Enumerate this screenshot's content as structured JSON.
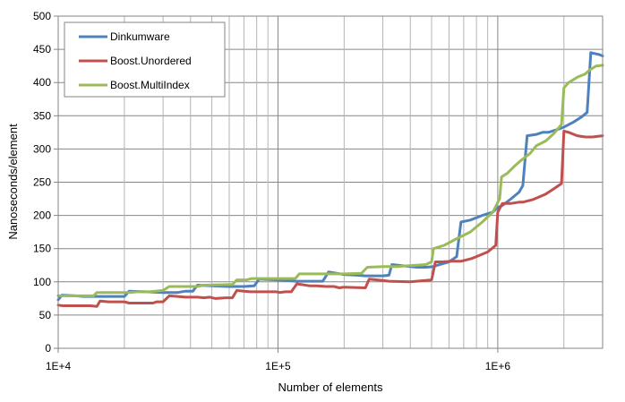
{
  "chart_data": {
    "type": "line",
    "xlabel": "Number of elements",
    "ylabel": "Nanoseconds/element",
    "xscale": "log",
    "xlim": [
      10000,
      3000000
    ],
    "ylim": [
      0,
      500
    ],
    "x_tick_labels": [
      "1E+4",
      "1E+5",
      "1E+6"
    ],
    "x_tick_values": [
      10000,
      100000,
      1000000
    ],
    "y_ticks": [
      0,
      50,
      100,
      150,
      200,
      250,
      300,
      350,
      400,
      450,
      500
    ],
    "grid": "both",
    "legend_position": "top-left",
    "series": [
      {
        "name": "Dinkumware",
        "color": "#4F81BD",
        "points": [
          [
            10000,
            73
          ],
          [
            10400,
            80
          ],
          [
            12000,
            79
          ],
          [
            13000,
            78
          ],
          [
            16000,
            78
          ],
          [
            17000,
            78
          ],
          [
            20000,
            78
          ],
          [
            21000,
            86
          ],
          [
            25000,
            85
          ],
          [
            30000,
            84
          ],
          [
            35000,
            84
          ],
          [
            38000,
            86
          ],
          [
            41000,
            86
          ],
          [
            43000,
            95
          ],
          [
            50000,
            94
          ],
          [
            60000,
            93
          ],
          [
            70000,
            93
          ],
          [
            78000,
            94
          ],
          [
            82000,
            104
          ],
          [
            100000,
            103
          ],
          [
            110000,
            102
          ],
          [
            120000,
            101
          ],
          [
            150000,
            101
          ],
          [
            160000,
            101
          ],
          [
            170000,
            115
          ],
          [
            200000,
            111
          ],
          [
            230000,
            110
          ],
          [
            250000,
            109
          ],
          [
            300000,
            109
          ],
          [
            320000,
            110
          ],
          [
            330000,
            126
          ],
          [
            400000,
            123
          ],
          [
            430000,
            122
          ],
          [
            470000,
            122
          ],
          [
            510000,
            123
          ],
          [
            530000,
            125
          ],
          [
            600000,
            130
          ],
          [
            650000,
            138
          ],
          [
            680000,
            190
          ],
          [
            750000,
            193
          ],
          [
            850000,
            200
          ],
          [
            950000,
            205
          ],
          [
            1000000,
            212
          ],
          [
            1050000,
            215
          ],
          [
            1150000,
            225
          ],
          [
            1250000,
            235
          ],
          [
            1300000,
            245
          ],
          [
            1360000,
            320
          ],
          [
            1500000,
            322
          ],
          [
            1600000,
            325
          ],
          [
            1700000,
            325
          ],
          [
            1900000,
            330
          ],
          [
            2000000,
            333
          ],
          [
            2200000,
            340
          ],
          [
            2400000,
            348
          ],
          [
            2550000,
            355
          ],
          [
            2650000,
            445
          ],
          [
            2900000,
            442
          ],
          [
            3000000,
            440
          ]
        ]
      },
      {
        "name": "Boost.Unordered",
        "color": "#C0504D",
        "points": [
          [
            10000,
            65
          ],
          [
            10500,
            64
          ],
          [
            12000,
            64
          ],
          [
            14000,
            64
          ],
          [
            15000,
            63
          ],
          [
            15500,
            71
          ],
          [
            17000,
            70
          ],
          [
            20000,
            70
          ],
          [
            21000,
            68
          ],
          [
            25000,
            68
          ],
          [
            27000,
            68
          ],
          [
            28000,
            70
          ],
          [
            30000,
            70
          ],
          [
            32000,
            79
          ],
          [
            35000,
            78
          ],
          [
            38000,
            77
          ],
          [
            43000,
            77
          ],
          [
            46000,
            76
          ],
          [
            49000,
            77
          ],
          [
            52000,
            75
          ],
          [
            58000,
            76
          ],
          [
            62000,
            76
          ],
          [
            65000,
            87
          ],
          [
            70000,
            86
          ],
          [
            75000,
            85
          ],
          [
            90000,
            85
          ],
          [
            98000,
            85
          ],
          [
            102000,
            84
          ],
          [
            108000,
            85
          ],
          [
            115000,
            85
          ],
          [
            122000,
            97
          ],
          [
            140000,
            94
          ],
          [
            150000,
            94
          ],
          [
            165000,
            93
          ],
          [
            180000,
            93
          ],
          [
            190000,
            91
          ],
          [
            200000,
            92
          ],
          [
            250000,
            91
          ],
          [
            260000,
            104
          ],
          [
            300000,
            102
          ],
          [
            320000,
            101
          ],
          [
            400000,
            100
          ],
          [
            500000,
            103
          ],
          [
            520000,
            130
          ],
          [
            560000,
            130
          ],
          [
            620000,
            131
          ],
          [
            680000,
            131
          ],
          [
            760000,
            135
          ],
          [
            800000,
            138
          ],
          [
            900000,
            145
          ],
          [
            980000,
            155
          ],
          [
            1000000,
            205
          ],
          [
            1050000,
            218
          ],
          [
            1150000,
            218
          ],
          [
            1250000,
            220
          ],
          [
            1300000,
            220
          ],
          [
            1450000,
            224
          ],
          [
            1550000,
            228
          ],
          [
            1650000,
            232
          ],
          [
            1800000,
            240
          ],
          [
            1950000,
            248
          ],
          [
            2000000,
            327
          ],
          [
            2100000,
            325
          ],
          [
            2300000,
            320
          ],
          [
            2500000,
            318
          ],
          [
            2700000,
            318
          ],
          [
            3000000,
            320
          ]
        ]
      },
      {
        "name": "Boost.MultiIndex",
        "color": "#9BBB59",
        "points": [
          [
            10000,
            79
          ],
          [
            12000,
            79
          ],
          [
            14500,
            79
          ],
          [
            15000,
            84
          ],
          [
            20000,
            84
          ],
          [
            21000,
            84
          ],
          [
            23000,
            85
          ],
          [
            26000,
            85
          ],
          [
            30000,
            87
          ],
          [
            32000,
            93
          ],
          [
            43000,
            93
          ],
          [
            46000,
            95
          ],
          [
            62000,
            96
          ],
          [
            65000,
            103
          ],
          [
            72000,
            103
          ],
          [
            76000,
            105
          ],
          [
            100000,
            105
          ],
          [
            120000,
            105
          ],
          [
            125000,
            112
          ],
          [
            160000,
            112
          ],
          [
            175000,
            112
          ],
          [
            200000,
            112
          ],
          [
            240000,
            113
          ],
          [
            255000,
            122
          ],
          [
            300000,
            123
          ],
          [
            350000,
            123
          ],
          [
            380000,
            124
          ],
          [
            470000,
            126
          ],
          [
            500000,
            130
          ],
          [
            510000,
            150
          ],
          [
            570000,
            155
          ],
          [
            650000,
            165
          ],
          [
            750000,
            175
          ],
          [
            850000,
            190
          ],
          [
            950000,
            205
          ],
          [
            1020000,
            225
          ],
          [
            1040000,
            258
          ],
          [
            1100000,
            263
          ],
          [
            1200000,
            275
          ],
          [
            1300000,
            285
          ],
          [
            1400000,
            293
          ],
          [
            1500000,
            305
          ],
          [
            1650000,
            312
          ],
          [
            1800000,
            323
          ],
          [
            1950000,
            337
          ],
          [
            2000000,
            392
          ],
          [
            2100000,
            400
          ],
          [
            2300000,
            408
          ],
          [
            2500000,
            413
          ],
          [
            2600000,
            418
          ],
          [
            2800000,
            425
          ],
          [
            3000000,
            426
          ]
        ]
      }
    ]
  }
}
